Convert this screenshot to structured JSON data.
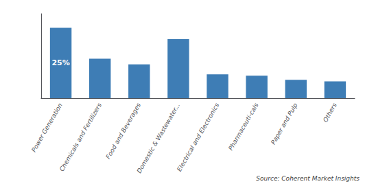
{
  "chart_data": {
    "type": "bar",
    "categories": [
      "Power Generation",
      "Chemicals and Fertilizers",
      "Food and Beverages",
      "Domestic & Wastewater...",
      "Electrical and Electronics",
      "Pharmaceuti-cals",
      "Paper and Pulp",
      "Others"
    ],
    "values": [
      25,
      14,
      12,
      21,
      8.5,
      8,
      6.5,
      6
    ],
    "color": "#3E7DB5",
    "ylim": [
      0,
      30
    ],
    "grid": false,
    "tick_labels": "x",
    "annotations": [
      {
        "text": "25%",
        "category": "Power Generation",
        "color": "#ffffff"
      }
    ],
    "source": "Source: Coherent Market Insights"
  }
}
